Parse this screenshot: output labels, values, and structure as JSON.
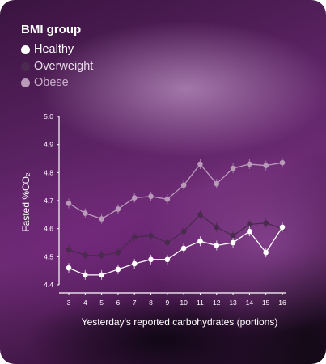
{
  "legend": {
    "title": "BMI group",
    "items": [
      {
        "label": "Healthy",
        "color": "#ffffff"
      },
      {
        "label": "Overweight",
        "color": "#4a2a4e"
      },
      {
        "label": "Obese",
        "color": "#b99ab9"
      }
    ]
  },
  "chart_data": {
    "type": "line",
    "xlabel": "Yesterday's reported carbohydrates (portions)",
    "ylabel": "Fasted %CO₂",
    "x": [
      3,
      4,
      5,
      6,
      7,
      8,
      9,
      10,
      11,
      12,
      13,
      14,
      15,
      16
    ],
    "ylim": [
      4.4,
      5.0
    ],
    "yticks": [
      "4.4",
      "4.5",
      "4.6",
      "4.7",
      "4.8",
      "4.9",
      "5.0"
    ],
    "xticks": [
      "3",
      "4",
      "5",
      "6",
      "7",
      "8",
      "9",
      "10",
      "11",
      "12",
      "13",
      "14",
      "15",
      "16"
    ],
    "grid": false,
    "series": [
      {
        "name": "Obese",
        "color": "#b99ab9",
        "values": [
          4.69,
          4.655,
          4.635,
          4.67,
          4.71,
          4.715,
          4.705,
          4.755,
          4.83,
          4.76,
          4.815,
          4.83,
          4.825,
          4.835
        ]
      },
      {
        "name": "Overweight",
        "color": "#4a2a4e",
        "values": [
          4.525,
          4.505,
          4.505,
          4.515,
          4.57,
          4.575,
          4.55,
          4.59,
          4.65,
          4.605,
          4.575,
          4.615,
          4.62,
          4.6
        ]
      },
      {
        "name": "Healthy",
        "color": "#ffffff",
        "values": [
          4.46,
          4.435,
          4.435,
          4.455,
          4.475,
          4.49,
          4.49,
          4.53,
          4.555,
          4.54,
          4.55,
          4.59,
          4.515,
          4.605
        ]
      }
    ]
  }
}
